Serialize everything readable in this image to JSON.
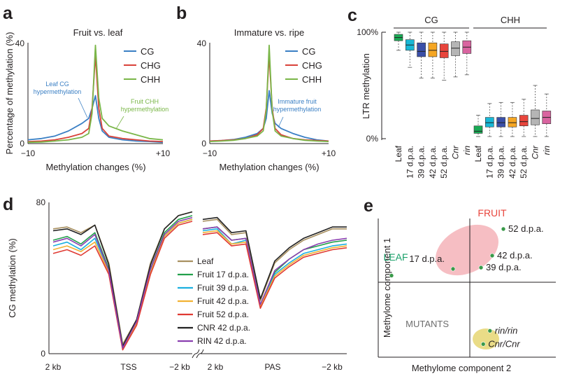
{
  "colors": {
    "cg": "#3a7fc4",
    "chg": "#d9423a",
    "chh": "#7ab648",
    "text": "#231f20",
    "box": [
      "#1aaa55",
      "#18b8d6",
      "#3a4fa8",
      "#f5a623",
      "#e8453c",
      "#b5b5b5",
      "#d964a0"
    ],
    "lines": [
      "#a89060",
      "#22a04b",
      "#1cb0e0",
      "#f2b233",
      "#e03a33",
      "#222222",
      "#8a3fb0"
    ],
    "fruit_ellipse": "#f4b3b8",
    "mutant_ellipse": "#e8d87a",
    "dot": "#3a9a4a",
    "fruit_text": "#e8453c",
    "leaf_text": "#1aa06a",
    "mutant_text": "#6d6d6d"
  },
  "chart_data": [
    {
      "panel": "a",
      "type": "line",
      "title": "Fruit vs. leaf",
      "xlabel": "Methylation changes (%)",
      "ylabel": "Percentage of methylation (%)",
      "xticks": [
        "−10",
        "+10"
      ],
      "yticks": [
        "0",
        "40"
      ],
      "xlim": [
        -10,
        10
      ],
      "ylim": [
        0,
        40
      ],
      "series": [
        {
          "name": "CG",
          "x": [
            -10,
            -8,
            -6,
            -4,
            -2,
            -1,
            -0.5,
            0,
            0.5,
            1,
            2,
            4,
            6,
            8,
            10
          ],
          "values": [
            1.5,
            2,
            3,
            5,
            8,
            10,
            14,
            19,
            10,
            5,
            2.5,
            1.5,
            1,
            0.8,
            0.5
          ]
        },
        {
          "name": "CHG",
          "x": [
            -10,
            -8,
            -6,
            -4,
            -2,
            -1,
            -0.5,
            0,
            0.5,
            1,
            2,
            4,
            6,
            8,
            10
          ],
          "values": [
            0.8,
            1,
            1.5,
            2.5,
            4,
            6,
            14,
            35,
            14,
            6,
            3,
            2,
            1.5,
            1,
            0.8
          ]
        },
        {
          "name": "CHH",
          "x": [
            -10,
            -8,
            -6,
            -4,
            -2,
            -1,
            -0.5,
            0,
            0.5,
            1,
            2,
            4,
            6,
            8,
            10
          ],
          "values": [
            0.5,
            0.6,
            1,
            1.5,
            2.5,
            4,
            12,
            39,
            18,
            10,
            7,
            5,
            3.5,
            2,
            1.5
          ]
        }
      ],
      "annotations": [
        {
          "text": "Leaf CG\nhypermethylation",
          "x": -7,
          "y": 22
        },
        {
          "text": "Fruit CHH\nhypermethylation",
          "x": 5.5,
          "y": 14
        }
      ]
    },
    {
      "panel": "b",
      "type": "line",
      "title": "Immature vs. ripe",
      "xlabel": "Methylation changes (%)",
      "ylabel": "",
      "xticks": [
        "−10",
        "+10"
      ],
      "yticks": [
        "0",
        "40"
      ],
      "xlim": [
        -10,
        10
      ],
      "ylim": [
        0,
        40
      ],
      "series": [
        {
          "name": "CG",
          "x": [
            -10,
            -8,
            -6,
            -4,
            -2,
            -1,
            -0.5,
            0,
            0.5,
            1,
            2,
            4,
            6,
            8,
            10
          ],
          "values": [
            1,
            1.2,
            1.6,
            2.5,
            4,
            6,
            10,
            21,
            12,
            8,
            6,
            4,
            2.5,
            1.5,
            1
          ]
        },
        {
          "name": "CHG",
          "x": [
            -10,
            -8,
            -6,
            -4,
            -2,
            -1,
            -0.5,
            0,
            0.5,
            1,
            2,
            4,
            6,
            8,
            10
          ],
          "values": [
            1,
            1.2,
            1.5,
            2,
            3.5,
            6,
            14,
            35,
            14,
            6,
            3.5,
            2,
            1.5,
            1.2,
            1
          ]
        },
        {
          "name": "CHH",
          "x": [
            -10,
            -8,
            -6,
            -4,
            -2,
            -1,
            -0.5,
            0,
            0.5,
            1,
            2,
            4,
            6,
            8,
            10
          ],
          "values": [
            0.8,
            1,
            1.3,
            2,
            3,
            5,
            13,
            39,
            13,
            5,
            3,
            2,
            1.3,
            1,
            0.8
          ]
        }
      ],
      "annotations": [
        {
          "text": "Immature fruit\nhypermethylation",
          "x": 5.5,
          "y": 20
        }
      ]
    },
    {
      "panel": "c",
      "type": "box",
      "ylabel": "LTR methylation",
      "yticks": [
        "0%",
        "100%"
      ],
      "ylim": [
        0,
        100
      ],
      "groups": [
        "CG",
        "CHH"
      ],
      "categories": [
        "Leaf",
        "17 d.p.a.",
        "39 d.p.a.",
        "42 d.p.a.",
        "52 d.p.a.",
        "Cnr",
        "rin"
      ],
      "italic_categories": [
        "Cnr",
        "rin"
      ],
      "boxes": {
        "CG": [
          {
            "min": 83,
            "q1": 92,
            "median": 95,
            "q3": 98,
            "max": 100
          },
          {
            "min": 67,
            "q1": 83,
            "median": 88,
            "q3": 93,
            "max": 100
          },
          {
            "min": 57,
            "q1": 77,
            "median": 82,
            "q3": 90,
            "max": 100
          },
          {
            "min": 57,
            "q1": 77,
            "median": 83,
            "q3": 90,
            "max": 100
          },
          {
            "min": 55,
            "q1": 76,
            "median": 82,
            "q3": 89,
            "max": 100
          },
          {
            "min": 58,
            "q1": 78,
            "median": 85,
            "q3": 91,
            "max": 100
          },
          {
            "min": 60,
            "q1": 80,
            "median": 86,
            "q3": 92,
            "max": 100
          }
        ],
        "CHH": [
          {
            "min": 2,
            "q1": 5,
            "median": 7,
            "q3": 12,
            "max": 22
          },
          {
            "min": 2,
            "q1": 11,
            "median": 15,
            "q3": 20,
            "max": 33
          },
          {
            "min": 2,
            "q1": 11,
            "median": 15,
            "q3": 20,
            "max": 34
          },
          {
            "min": 2,
            "q1": 11,
            "median": 15,
            "q3": 20,
            "max": 34
          },
          {
            "min": 2,
            "q1": 12,
            "median": 16,
            "q3": 22,
            "max": 37
          },
          {
            "min": 2,
            "q1": 13,
            "median": 19,
            "q3": 27,
            "max": 50
          },
          {
            "min": 2,
            "q1": 14,
            "median": 20,
            "q3": 26,
            "max": 42
          }
        ]
      }
    },
    {
      "panel": "d",
      "type": "line",
      "ylabel": "CG methylation (%)",
      "yticks": [
        "0",
        "80"
      ],
      "ylim": [
        0,
        80
      ],
      "xticks_left": [
        "2 kb",
        "TSS",
        "−2 kb"
      ],
      "xticks_right": [
        "2 kb",
        "PAS",
        "−2 kb"
      ],
      "x": [
        0,
        1,
        2,
        3,
        4,
        5,
        6,
        7,
        8,
        9,
        10
      ],
      "series": [
        {
          "name": "Leaf",
          "left": [
            66,
            67,
            64,
            68,
            48,
            5,
            18,
            48,
            66,
            73,
            75
          ],
          "right": [
            70,
            71,
            63,
            64,
            28,
            48,
            55,
            60,
            63,
            66,
            66
          ]
        },
        {
          "name": "Fruit 17 d.p.a.",
          "left": [
            60,
            62,
            58,
            64,
            45,
            3,
            17,
            45,
            64,
            71,
            73
          ],
          "right": [
            66,
            67,
            60,
            61,
            26,
            43,
            50,
            55,
            57,
            59,
            60
          ]
        },
        {
          "name": "Fruit 39 d.p.a.",
          "left": [
            57,
            59,
            55,
            61,
            44,
            3,
            16,
            44,
            62,
            69,
            71
          ],
          "right": [
            65,
            66,
            58,
            60,
            25,
            42,
            48,
            53,
            55,
            57,
            58
          ]
        },
        {
          "name": "Fruit 42 d.p.a.",
          "left": [
            55,
            57,
            54,
            59,
            43,
            3,
            16,
            43,
            62,
            69,
            71
          ],
          "right": [
            64,
            65,
            58,
            59,
            25,
            41,
            47,
            52,
            54,
            56,
            57
          ]
        },
        {
          "name": "Fruit 52 d.p.a.",
          "left": [
            53,
            55,
            52,
            57,
            42,
            2,
            15,
            42,
            61,
            68,
            70
          ],
          "right": [
            63,
            64,
            57,
            58,
            24,
            40,
            46,
            51,
            53,
            55,
            56
          ]
        },
        {
          "name": "CNR 42 d.p.a.",
          "left": [
            65,
            66,
            63,
            68,
            47,
            4,
            18,
            47,
            66,
            73,
            75
          ],
          "right": [
            71,
            72,
            64,
            65,
            29,
            49,
            56,
            61,
            64,
            67,
            67
          ]
        },
        {
          "name": "RIN 42 d.p.a.",
          "left": [
            59,
            61,
            57,
            63,
            44,
            3,
            17,
            45,
            63,
            70,
            72
          ],
          "right": [
            66,
            67,
            60,
            61,
            26,
            44,
            50,
            55,
            58,
            60,
            61
          ]
        }
      ]
    },
    {
      "panel": "e",
      "type": "scatter",
      "xlabel": "Methylome component 2",
      "ylabel": "Methylome component 1",
      "points": [
        {
          "label": "LEAF",
          "value_label": "",
          "x": -0.7,
          "y": 0.1
        },
        {
          "label": "17 d.p.a.",
          "x": -0.15,
          "y": 0.2
        },
        {
          "label": "39 d.p.a.",
          "x": 0.1,
          "y": 0.22
        },
        {
          "label": "42 d.p.a.",
          "x": 0.2,
          "y": 0.4
        },
        {
          "label": "52 d.p.a.",
          "x": 0.3,
          "y": 0.8
        },
        {
          "label": "rin/rin",
          "x": 0.18,
          "y": -0.73
        },
        {
          "label": "Cnr/Cnr",
          "x": 0.12,
          "y": -0.93
        }
      ],
      "group_labels": [
        "FRUIT",
        "LEAF",
        "MUTANTS"
      ]
    }
  ],
  "panel_labels": [
    "a",
    "b",
    "c",
    "d",
    "e"
  ]
}
